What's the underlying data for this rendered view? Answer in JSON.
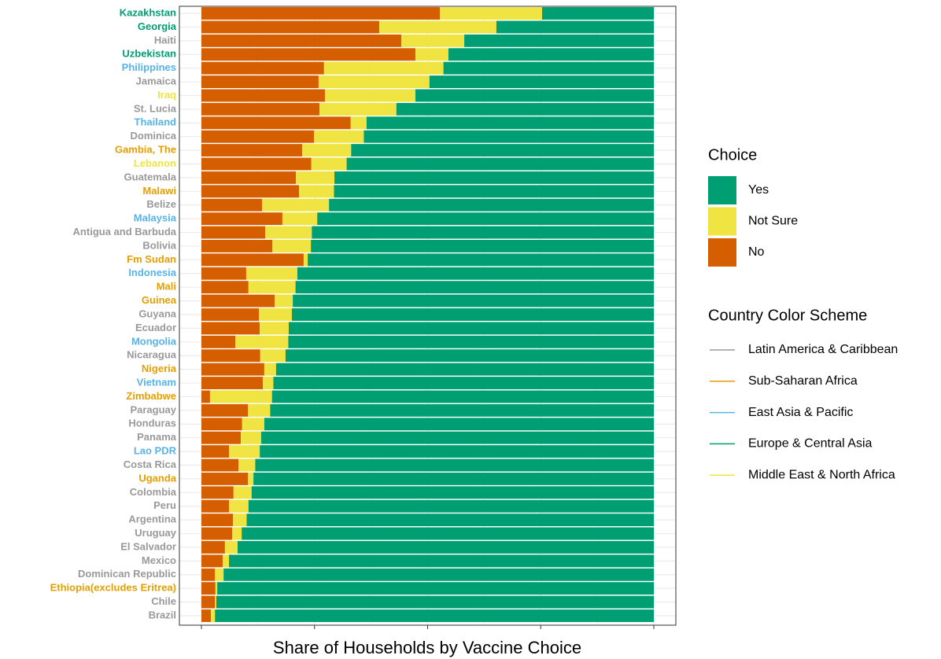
{
  "chart_data": {
    "type": "stacked_barh",
    "x_label": "Share of Households by Vaccine Choice",
    "categories": [
      "Kazakhstan",
      "Georgia",
      "Haiti",
      "Uzbekistan",
      "Philippines",
      "Jamaica",
      "Iraq",
      "St. Lucia",
      "Thailand",
      "Dominica",
      "Gambia, The",
      "Lebanon",
      "Guatemala",
      "Malawi",
      "Belize",
      "Malaysia",
      "Antigua and Barbuda",
      "Bolivia",
      "Fm Sudan",
      "Indonesia",
      "Mali",
      "Guinea",
      "Guyana",
      "Ecuador",
      "Mongolia",
      "Nicaragua",
      "Nigeria",
      "Vietnam",
      "Zimbabwe",
      "Paraguay",
      "Honduras",
      "Panama",
      "Lao PDR",
      "Costa Rica",
      "Uganda",
      "Colombia",
      "Peru",
      "Argentina",
      "Uruguay",
      "El Salvador",
      "Mexico",
      "Dominican Republic",
      "Ethiopia(excludes Eritrea)",
      "Chile",
      "Brazil"
    ],
    "category_region": [
      "Europe & Central Asia",
      "Europe & Central Asia",
      "Latin America & Caribbean",
      "Europe & Central Asia",
      "East Asia & Pacific",
      "Latin America & Caribbean",
      "Middle East & North Africa",
      "Latin America & Caribbean",
      "East Asia & Pacific",
      "Latin America & Caribbean",
      "Sub-Saharan Africa",
      "Middle East & North Africa",
      "Latin America & Caribbean",
      "Sub-Saharan Africa",
      "Latin America & Caribbean",
      "East Asia & Pacific",
      "Latin America & Caribbean",
      "Latin America & Caribbean",
      "Sub-Saharan Africa",
      "East Asia & Pacific",
      "Sub-Saharan Africa",
      "Sub-Saharan Africa",
      "Latin America & Caribbean",
      "Latin America & Caribbean",
      "East Asia & Pacific",
      "Latin America & Caribbean",
      "Sub-Saharan Africa",
      "East Asia & Pacific",
      "Sub-Saharan Africa",
      "Latin America & Caribbean",
      "Latin America & Caribbean",
      "Latin America & Caribbean",
      "East Asia & Pacific",
      "Latin America & Caribbean",
      "Sub-Saharan Africa",
      "Latin America & Caribbean",
      "Latin America & Caribbean",
      "Latin America & Caribbean",
      "Latin America & Caribbean",
      "Latin America & Caribbean",
      "Latin America & Caribbean",
      "Latin America & Caribbean",
      "Sub-Saharan Africa",
      "Latin America & Caribbean",
      "Latin America & Caribbean"
    ],
    "series": [
      {
        "name": "No",
        "color": "#D55E00",
        "values": [
          0.527,
          0.393,
          0.442,
          0.473,
          0.271,
          0.259,
          0.273,
          0.261,
          0.33,
          0.249,
          0.223,
          0.243,
          0.209,
          0.216,
          0.134,
          0.179,
          0.141,
          0.157,
          0.226,
          0.099,
          0.104,
          0.162,
          0.127,
          0.129,
          0.075,
          0.13,
          0.139,
          0.136,
          0.019,
          0.103,
          0.09,
          0.087,
          0.061,
          0.082,
          0.103,
          0.071,
          0.061,
          0.07,
          0.068,
          0.052,
          0.047,
          0.03,
          0.031,
          0.03,
          0.021
        ]
      },
      {
        "name": "Not Sure",
        "color": "#F0E442",
        "values": [
          0.226,
          0.259,
          0.139,
          0.073,
          0.264,
          0.245,
          0.2,
          0.17,
          0.035,
          0.11,
          0.108,
          0.078,
          0.085,
          0.077,
          0.148,
          0.077,
          0.103,
          0.085,
          0.009,
          0.113,
          0.104,
          0.04,
          0.073,
          0.064,
          0.117,
          0.056,
          0.026,
          0.023,
          0.137,
          0.049,
          0.049,
          0.045,
          0.068,
          0.037,
          0.012,
          0.04,
          0.043,
          0.03,
          0.021,
          0.028,
          0.014,
          0.019,
          0.004,
          0.003,
          0.009
        ]
      },
      {
        "name": "Yes",
        "color": "#009E73",
        "values": [
          0.247,
          0.348,
          0.419,
          0.454,
          0.465,
          0.496,
          0.527,
          0.569,
          0.635,
          0.641,
          0.669,
          0.679,
          0.706,
          0.707,
          0.718,
          0.744,
          0.756,
          0.758,
          0.765,
          0.788,
          0.792,
          0.798,
          0.8,
          0.807,
          0.808,
          0.814,
          0.835,
          0.841,
          0.844,
          0.848,
          0.861,
          0.868,
          0.871,
          0.881,
          0.885,
          0.889,
          0.896,
          0.9,
          0.911,
          0.92,
          0.939,
          0.951,
          0.965,
          0.967,
          0.97
        ]
      }
    ],
    "legend_title": "Choice",
    "color_scheme": {
      "title": "Country Color Scheme",
      "groups": [
        {
          "name": "Latin America & Caribbean",
          "color": "#999999"
        },
        {
          "name": "Sub-Saharan Africa",
          "color": "#E69F00"
        },
        {
          "name": "East Asia & Pacific",
          "color": "#56B4E9"
        },
        {
          "name": "Europe & Central Asia",
          "color": "#009E73"
        },
        {
          "name": "Middle East & North Africa",
          "color": "#F0E442"
        }
      ]
    },
    "xlim": [
      0,
      1
    ],
    "xticks": [
      0,
      0.25,
      0.5,
      0.75,
      1
    ],
    "grid": true
  }
}
